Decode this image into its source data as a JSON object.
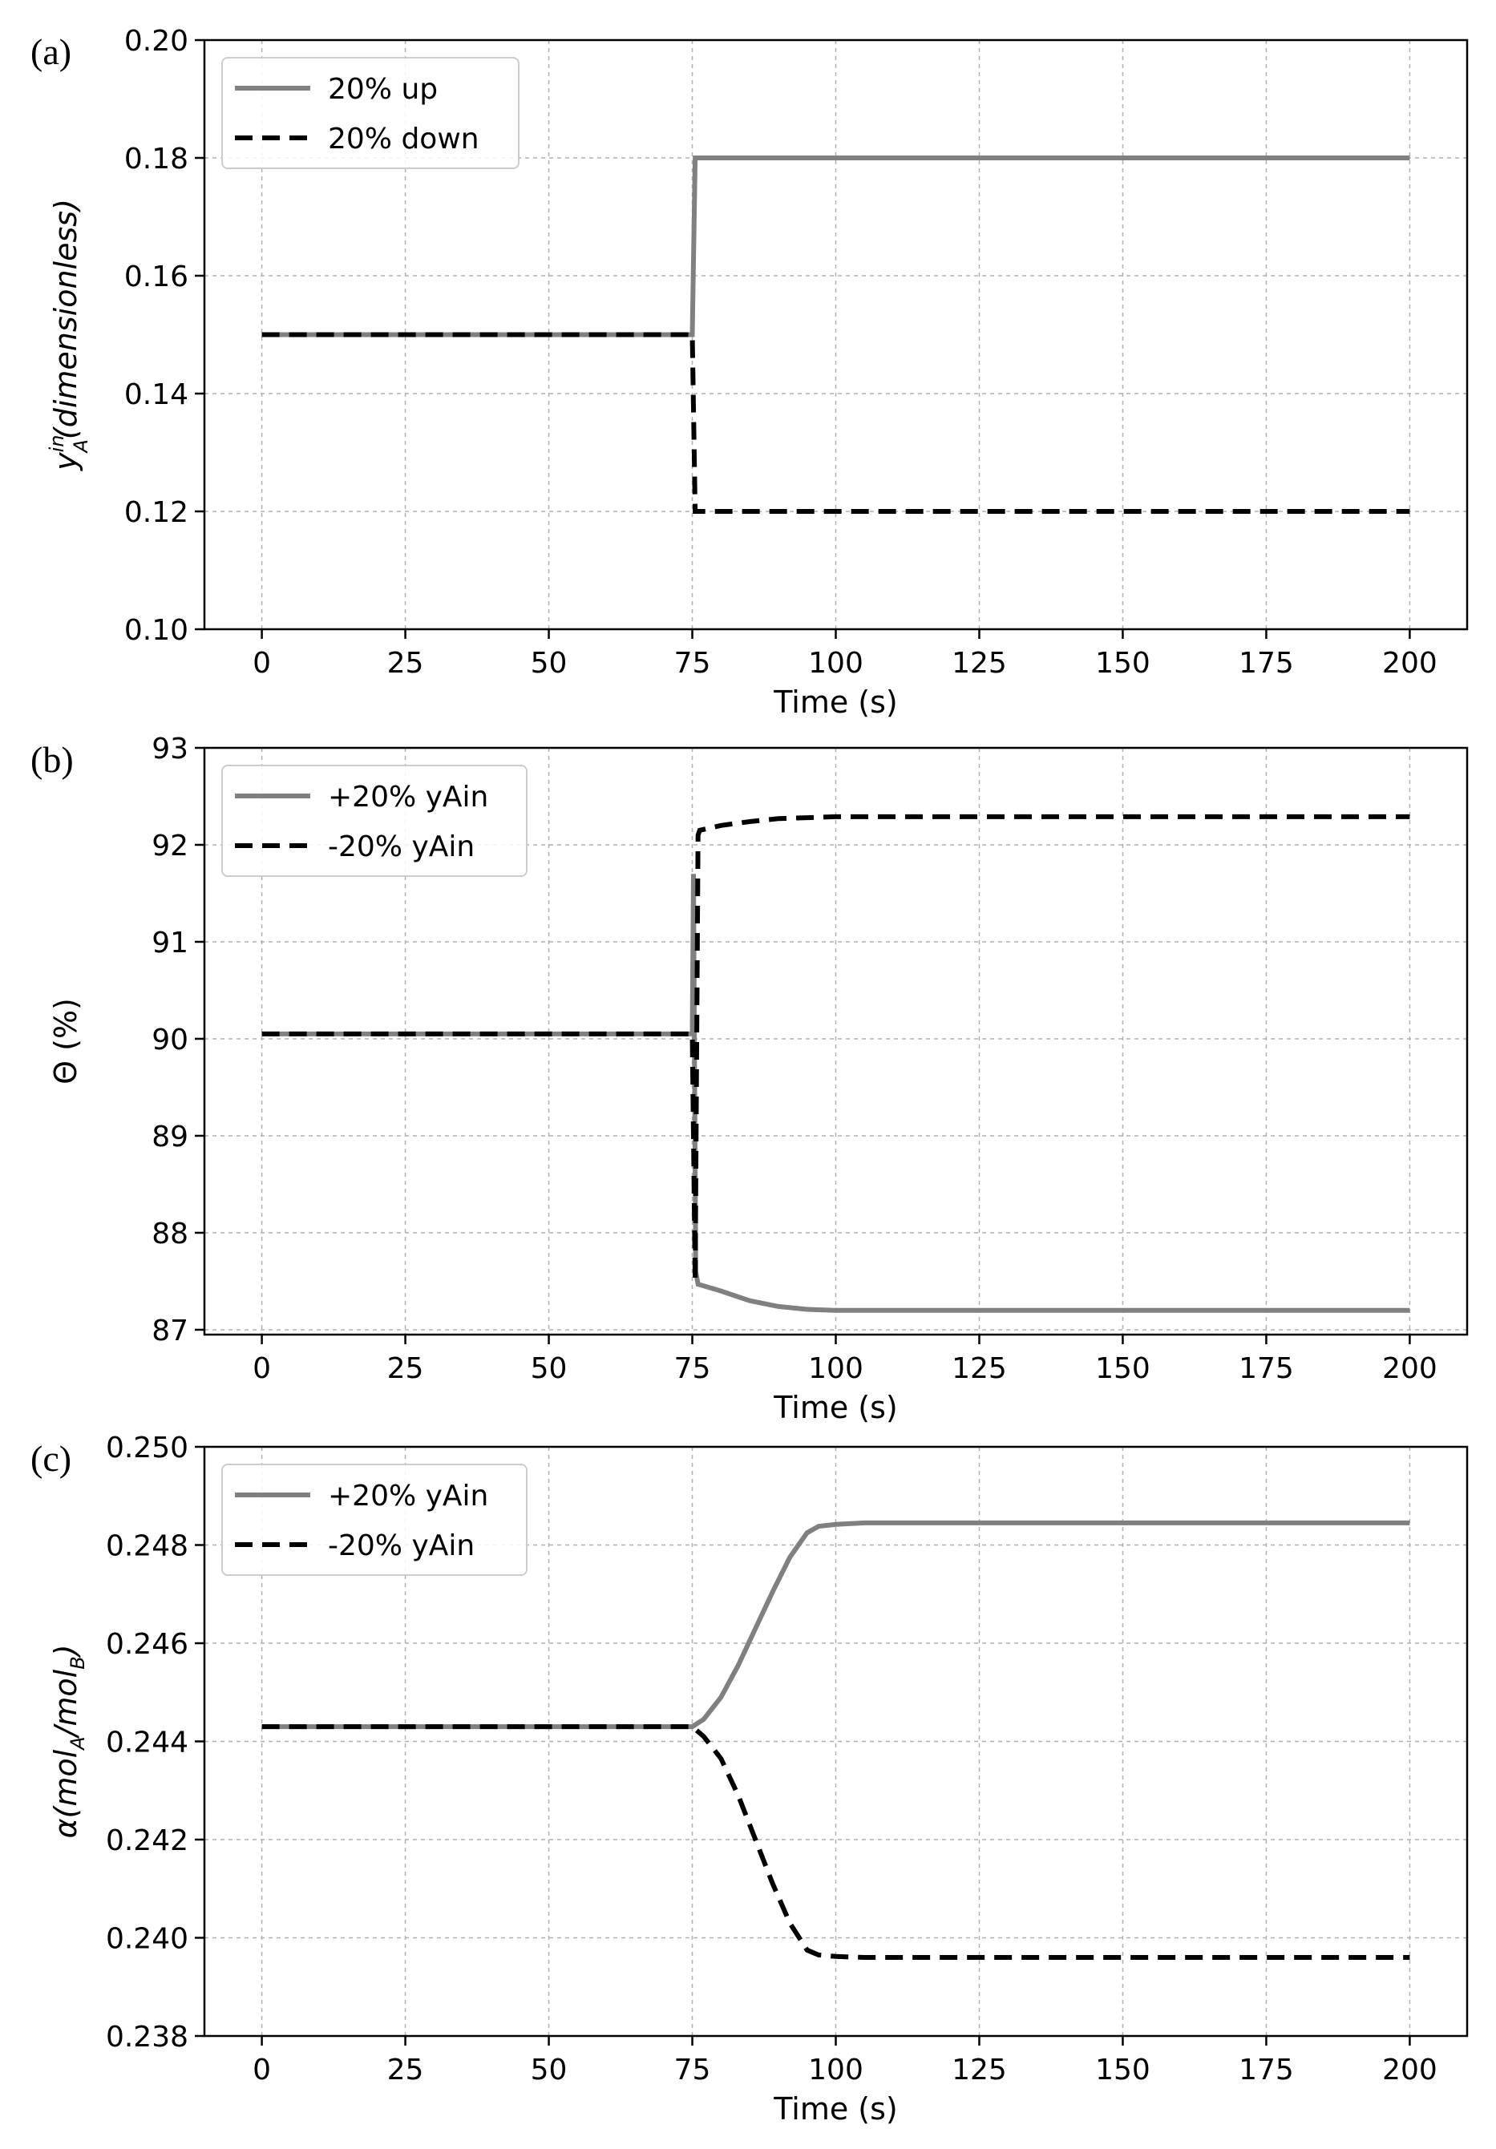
{
  "chart_data": [
    {
      "panel_label": "(a)",
      "type": "line",
      "xlabel": "Time (s)",
      "ylabel": {
        "prefix": "y",
        "sup": "in",
        "sub": "A",
        "suffix": "(dimensionless)"
      },
      "xlim": [
        -10,
        210
      ],
      "ylim": [
        0.1,
        0.2
      ],
      "xticks": [
        0,
        25,
        50,
        75,
        100,
        125,
        150,
        175,
        200
      ],
      "xtick_labels": [
        "0",
        "25",
        "50",
        "75",
        "100",
        "125",
        "150",
        "175",
        "200"
      ],
      "yticks": [
        0.1,
        0.12,
        0.14,
        0.16,
        0.18,
        0.2
      ],
      "ytick_labels": [
        "0.10",
        "0.12",
        "0.14",
        "0.16",
        "0.18",
        "0.20"
      ],
      "grid": true,
      "legend_position": "top-left",
      "series": [
        {
          "name": "20% up",
          "color": "#808080",
          "dash": "solid",
          "x": [
            0,
            75,
            75.5,
            200
          ],
          "y": [
            0.15,
            0.15,
            0.18,
            0.18
          ]
        },
        {
          "name": "20% down",
          "color": "#000000",
          "dash": "dashed",
          "x": [
            0,
            75,
            75.5,
            200
          ],
          "y": [
            0.15,
            0.15,
            0.12,
            0.12
          ]
        }
      ]
    },
    {
      "panel_label": "(b)",
      "type": "line",
      "xlabel": "Time (s)",
      "ylabel": {
        "prefix": "Θ (%)",
        "sup": "",
        "sub": "",
        "suffix": ""
      },
      "xlim": [
        -10,
        210
      ],
      "ylim": [
        86.95,
        93
      ],
      "xticks": [
        0,
        25,
        50,
        75,
        100,
        125,
        150,
        175,
        200
      ],
      "xtick_labels": [
        "0",
        "25",
        "50",
        "75",
        "100",
        "125",
        "150",
        "175",
        "200"
      ],
      "yticks": [
        87,
        88,
        89,
        90,
        91,
        92,
        93
      ],
      "ytick_labels": [
        "87",
        "88",
        "89",
        "90",
        "91",
        "92",
        "93"
      ],
      "grid": true,
      "legend_position": "top-left",
      "series": [
        {
          "name": "+20% yAin",
          "color": "#808080",
          "dash": "solid",
          "x": [
            0,
            75,
            75.2,
            75.6,
            76,
            80,
            85,
            90,
            95,
            100,
            200
          ],
          "y": [
            90.05,
            90.05,
            91.7,
            87.6,
            87.47,
            87.4,
            87.3,
            87.24,
            87.21,
            87.2,
            87.2
          ]
        },
        {
          "name": "-20% yAin",
          "color": "#000000",
          "dash": "dashed",
          "x": [
            0,
            75,
            75.5,
            76,
            76.3,
            80,
            85,
            90,
            95,
            100,
            200
          ],
          "y": [
            90.05,
            90.05,
            87.5,
            92.1,
            92.15,
            92.2,
            92.24,
            92.27,
            92.28,
            92.29,
            92.29
          ]
        }
      ]
    },
    {
      "panel_label": "(c)",
      "type": "line",
      "xlabel": "Time (s)",
      "ylabel": {
        "prefix": "α(mol",
        "sub": "A",
        "mid": "/mol",
        "sub2": "B",
        "suffix": ")"
      },
      "xlim": [
        -10,
        210
      ],
      "ylim": [
        0.238,
        0.25
      ],
      "xticks": [
        0,
        25,
        50,
        75,
        100,
        125,
        150,
        175,
        200
      ],
      "xtick_labels": [
        "0",
        "25",
        "50",
        "75",
        "100",
        "125",
        "150",
        "175",
        "200"
      ],
      "yticks": [
        0.238,
        0.24,
        0.242,
        0.244,
        0.246,
        0.248,
        0.25
      ],
      "ytick_labels": [
        "0.238",
        "0.240",
        "0.242",
        "0.244",
        "0.246",
        "0.248",
        "0.250"
      ],
      "grid": true,
      "legend_position": "top-left",
      "series": [
        {
          "name": "+20% yAin",
          "color": "#808080",
          "dash": "solid",
          "x": [
            0,
            75,
            77,
            80,
            83,
            86,
            89,
            92,
            95,
            97,
            100,
            105,
            200
          ],
          "y": [
            0.2443,
            0.2443,
            0.24445,
            0.2449,
            0.24555,
            0.2463,
            0.24705,
            0.24775,
            0.24825,
            0.24838,
            0.24842,
            0.24845,
            0.24845
          ]
        },
        {
          "name": "-20% yAin",
          "color": "#000000",
          "dash": "dashed",
          "x": [
            0,
            75,
            77,
            80,
            83,
            86,
            89,
            92,
            95,
            97,
            100,
            105,
            200
          ],
          "y": [
            0.2443,
            0.2443,
            0.2441,
            0.24365,
            0.2429,
            0.242,
            0.2411,
            0.2403,
            0.23975,
            0.23965,
            0.23962,
            0.2396,
            0.2396
          ]
        }
      ]
    }
  ]
}
